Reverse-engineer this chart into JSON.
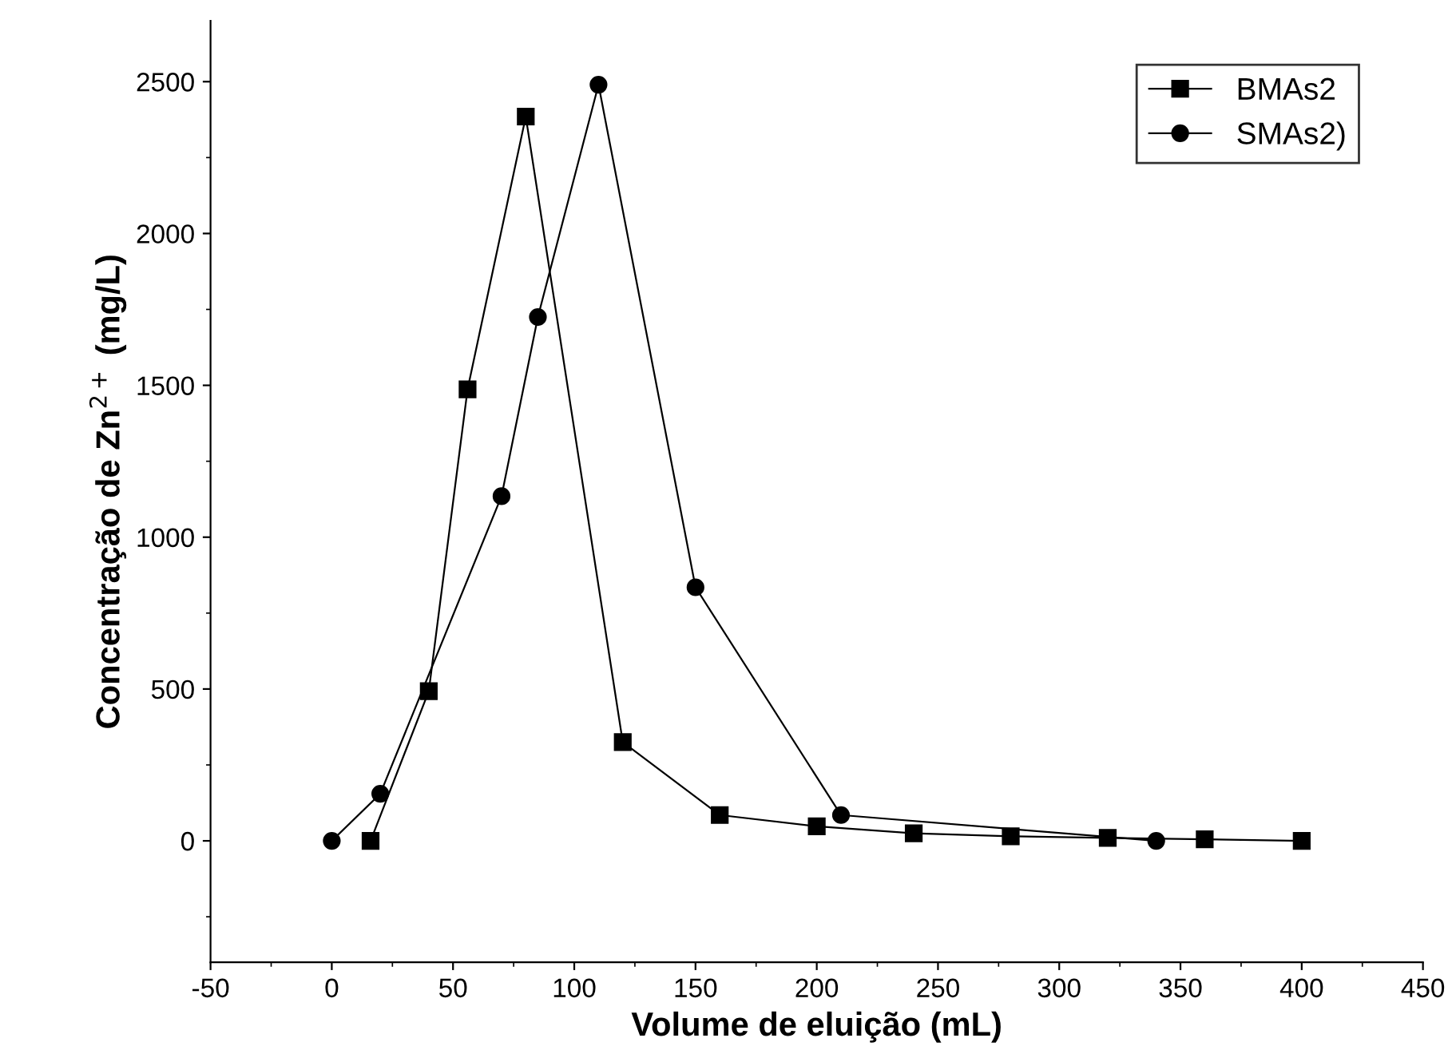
{
  "chart_data": {
    "type": "line",
    "xlabel": "Volume de eluição (mL)",
    "ylabel": "Concentração de Zn$^{2+}$ (mg/L)",
    "xlim": [
      -50,
      450
    ],
    "xticks": [
      -50,
      0,
      50,
      100,
      150,
      200,
      250,
      300,
      350,
      400,
      450
    ],
    "ylim": [
      -400,
      2700
    ],
    "yticks": [
      0,
      500,
      1000,
      1500,
      2000,
      2500
    ],
    "grid": false,
    "legend": "top right",
    "line_style": "solid",
    "series": [
      {
        "name": "BMAs2",
        "color": "#000000",
        "marker": "square",
        "x": [
          16,
          40,
          56,
          80,
          120,
          160,
          200,
          240,
          280,
          320,
          360,
          400
        ],
        "values": [
          0,
          493,
          1487,
          2385,
          325,
          85,
          48,
          25,
          15,
          10,
          5,
          0
        ]
      },
      {
        "name": "SMAs2)",
        "color": "#000000",
        "marker": "circle",
        "x": [
          0,
          20,
          70,
          85,
          110,
          150,
          210,
          340
        ],
        "values": [
          0,
          155,
          1135,
          1725,
          2490,
          835,
          85,
          0
        ]
      }
    ]
  }
}
